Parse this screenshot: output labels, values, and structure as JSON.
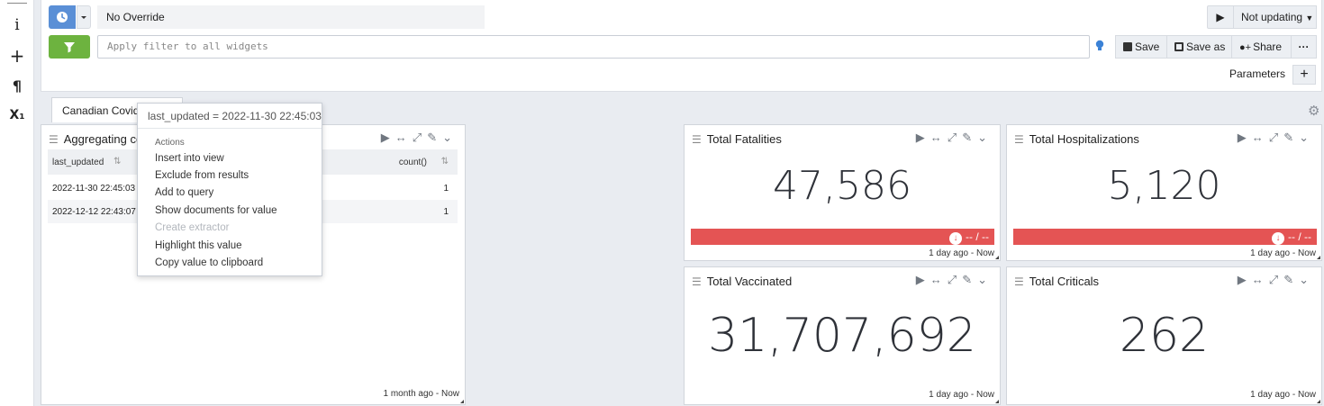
{
  "rail": {
    "icons": [
      {
        "name": "info-icon",
        "glyph": "i"
      },
      {
        "name": "plus-icon",
        "glyph": "+"
      },
      {
        "name": "pilcrow-icon",
        "glyph": "¶"
      },
      {
        "name": "subscript-icon",
        "glyph": "X₁"
      }
    ]
  },
  "toolbar": {
    "override_value": "No Override",
    "filter_placeholder": "Apply filter to all widgets",
    "play_glyph": "▶",
    "refresh_label": "Not updating",
    "save_label": "Save",
    "save_as_label": "Save as",
    "share_label": "Share",
    "more_glyph": "···",
    "parameters_label": "Parameters",
    "parameters_add_glyph": "+"
  },
  "tab": {
    "label": "Canadian Covid S"
  },
  "aggregating_widget": {
    "title": "Aggregating cou",
    "columns": [
      "last_updated",
      "count()"
    ],
    "rows": [
      {
        "last_updated": "2022-11-30 22:45:03",
        "count": "1"
      },
      {
        "last_updated": "2022-12-12 22:43:07",
        "count": "1"
      }
    ],
    "timerange": "1 month ago - Now"
  },
  "stat_widgets": [
    {
      "title": "Total Fatalities",
      "value": "47,586",
      "trend": "-- / --",
      "timerange": "1 day ago - Now"
    },
    {
      "title": "Total Hospitalizations",
      "value": "5,120",
      "trend": "-- / --",
      "timerange": "1 day ago - Now"
    },
    {
      "title": "Total Vaccinated",
      "value": "31,707,692",
      "timerange": "1 day ago - Now"
    },
    {
      "title": "Total Criticals",
      "value": "262",
      "timerange": "1 day ago - Now"
    }
  ],
  "popover": {
    "title": "last_updated = 2022-11-30 22:45:03",
    "section": "Actions",
    "items": [
      {
        "label": "Insert into view",
        "enabled": true
      },
      {
        "label": "Exclude from results",
        "enabled": true
      },
      {
        "label": "Add to query",
        "enabled": true
      },
      {
        "label": "Show documents for value",
        "enabled": true
      },
      {
        "label": "Create extractor",
        "enabled": false
      },
      {
        "label": "Highlight this value",
        "enabled": true
      },
      {
        "label": "Copy value to clipboard",
        "enabled": true
      }
    ]
  },
  "colors": {
    "accent_blue": "#5a8fd6",
    "accent_green": "#6db33f",
    "trend_red": "#e45454"
  }
}
